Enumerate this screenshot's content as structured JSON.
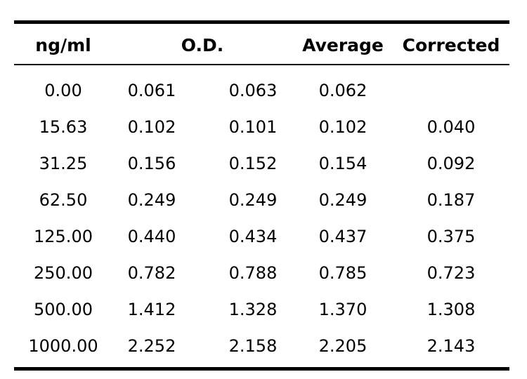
{
  "table": {
    "headers": {
      "concentration": "ng/ml",
      "od": "O.D.",
      "average": "Average",
      "corrected": "Corrected"
    },
    "rows": [
      {
        "conc": "0.00",
        "od1": "0.061",
        "od2": "0.063",
        "avg": "0.062",
        "corr": ""
      },
      {
        "conc": "15.63",
        "od1": "0.102",
        "od2": "0.101",
        "avg": "0.102",
        "corr": "0.040"
      },
      {
        "conc": "31.25",
        "od1": "0.156",
        "od2": "0.152",
        "avg": "0.154",
        "corr": "0.092"
      },
      {
        "conc": "62.50",
        "od1": "0.249",
        "od2": "0.249",
        "avg": "0.249",
        "corr": "0.187"
      },
      {
        "conc": "125.00",
        "od1": "0.440",
        "od2": "0.434",
        "avg": "0.437",
        "corr": "0.375"
      },
      {
        "conc": "250.00",
        "od1": "0.782",
        "od2": "0.788",
        "avg": "0.785",
        "corr": "0.723"
      },
      {
        "conc": "500.00",
        "od1": "1.412",
        "od2": "1.328",
        "avg": "1.370",
        "corr": "1.308"
      },
      {
        "conc": "1000.00",
        "od1": "2.252",
        "od2": "2.158",
        "avg": "2.205",
        "corr": "2.143"
      }
    ]
  }
}
